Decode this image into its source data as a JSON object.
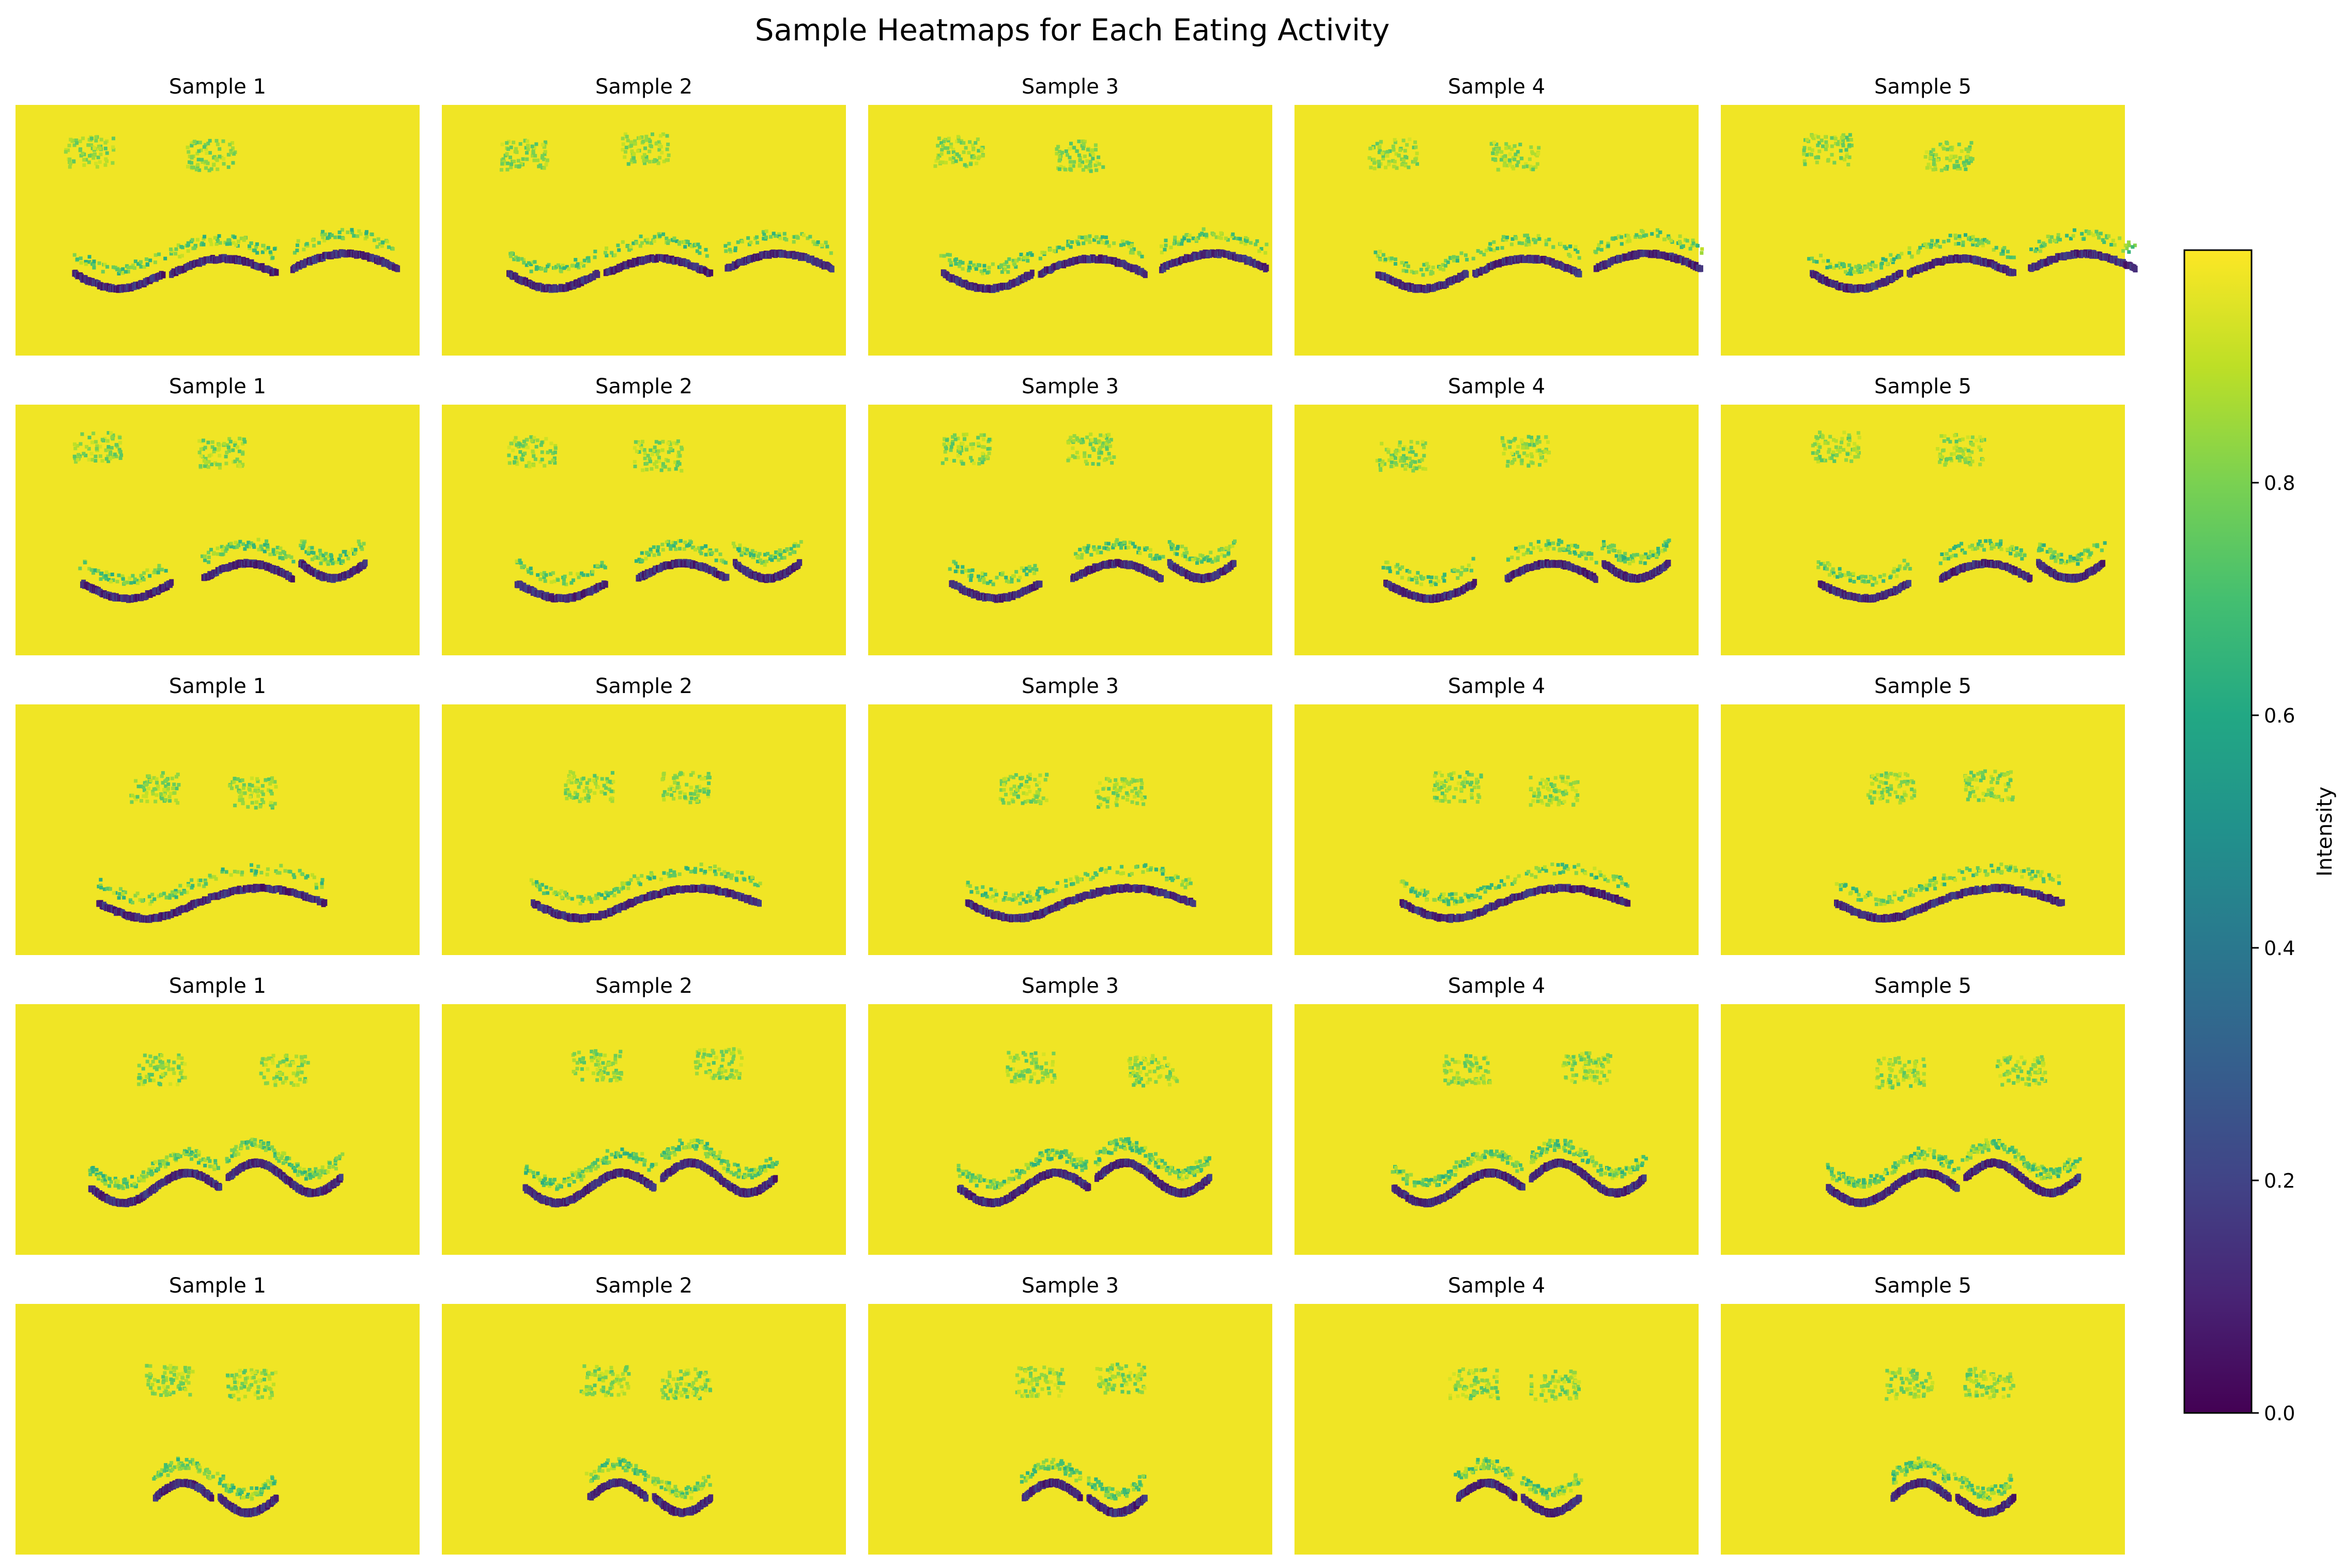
{
  "figure": {
    "title": "Sample Heatmaps for Each Eating Activity",
    "colormap": "viridis",
    "background_color": "#ffffff"
  },
  "chart_data": {
    "type": "heatmap",
    "title": "Sample Heatmaps for Each Eating Activity",
    "grid": false,
    "axes_visible": false,
    "rows": 5,
    "columns": 5,
    "panels": [
      [
        {
          "title": "Sample 1"
        },
        {
          "title": "Sample 2"
        },
        {
          "title": "Sample 3"
        },
        {
          "title": "Sample 4"
        },
        {
          "title": "Sample 5"
        }
      ],
      [
        {
          "title": "Sample 1"
        },
        {
          "title": "Sample 2"
        },
        {
          "title": "Sample 3"
        },
        {
          "title": "Sample 4"
        },
        {
          "title": "Sample 5"
        }
      ],
      [
        {
          "title": "Sample 1"
        },
        {
          "title": "Sample 2"
        },
        {
          "title": "Sample 3"
        },
        {
          "title": "Sample 4"
        },
        {
          "title": "Sample 5"
        }
      ],
      [
        {
          "title": "Sample 1"
        },
        {
          "title": "Sample 2"
        },
        {
          "title": "Sample 3"
        },
        {
          "title": "Sample 4"
        },
        {
          "title": "Sample 5"
        }
      ],
      [
        {
          "title": "Sample 1"
        },
        {
          "title": "Sample 2"
        },
        {
          "title": "Sample 3"
        },
        {
          "title": "Sample 4"
        },
        {
          "title": "Sample 5"
        }
      ]
    ],
    "colorbar": {
      "label": "Intensity",
      "range": [
        0,
        1
      ],
      "ticks": [
        0.0,
        0.2,
        0.4,
        0.6,
        0.8
      ],
      "tick_labels": [
        "0.0",
        "0.2",
        "0.4",
        "0.6",
        "0.8"
      ]
    }
  }
}
